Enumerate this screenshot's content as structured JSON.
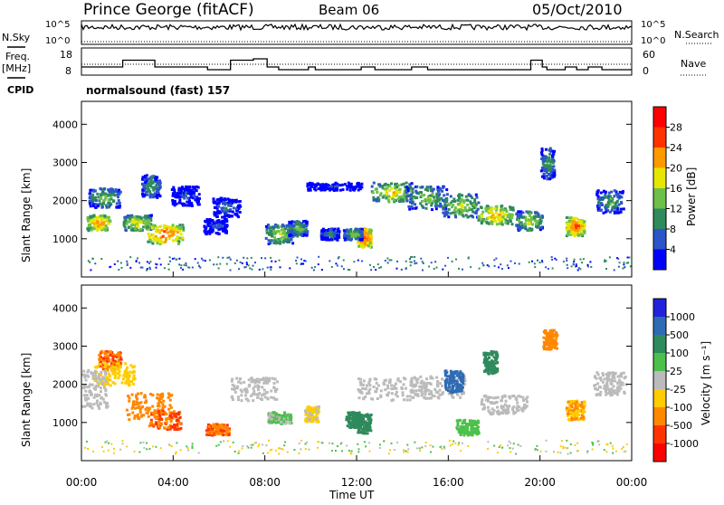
{
  "header": {
    "station": "Prince George (fitACF)",
    "beam": "Beam 06",
    "date": "05/Oct/2010"
  },
  "top_panels": {
    "left_labels": [
      "N.Sky",
      "Freq.",
      "[MHz]",
      "CPID"
    ],
    "right_labels": [
      "N.Search",
      "Nave"
    ],
    "nsky_ticks": [
      "10^5",
      "10^0"
    ],
    "nsearch_ticks": [
      "10^5",
      "10^0"
    ],
    "freq_ticks": [
      "18",
      "8"
    ],
    "nave_ticks": [
      "60",
      "0"
    ],
    "cpid_text": "normalsound (fast) 157"
  },
  "axes": {
    "ylabel": "Slant Range [km]",
    "xlabel": "Time UT",
    "xticks": [
      "00:00",
      "04:00",
      "08:00",
      "12:00",
      "16:00",
      "20:00",
      "00:00"
    ],
    "yticks": [
      "1000",
      "2000",
      "3000",
      "4000"
    ],
    "ylim": [
      0,
      4600
    ]
  },
  "power_bar": {
    "label": "Power [dB]",
    "ticks": [
      "4",
      "8",
      "12",
      "16",
      "20",
      "24",
      "28"
    ],
    "colors": [
      "#0000ff",
      "#2c56c8",
      "#2f8a5c",
      "#6fc04a",
      "#e6e600",
      "#ff9900",
      "#ff3300",
      "#ff0000"
    ]
  },
  "velocity_bar": {
    "label": "Velocity [m s⁻¹]",
    "ticks": [
      "1000",
      "500",
      "100",
      "25",
      "-25",
      "-100",
      "-500",
      "-1000"
    ],
    "colors": [
      "#2222dd",
      "#2f6bb4",
      "#2f8a5c",
      "#4cc04a",
      "#bbbbbb",
      "#ffcc00",
      "#ff8800",
      "#ff3300",
      "#ff0000"
    ]
  },
  "chart_data": {
    "type": "heatmap",
    "x_range_hours": [
      0,
      24
    ],
    "freq_profile_mhz": [
      [
        0,
        11
      ],
      [
        1.8,
        11
      ],
      [
        1.8,
        13.5
      ],
      [
        3.2,
        13.5
      ],
      [
        3.2,
        11
      ],
      [
        5.5,
        11
      ],
      [
        5.5,
        10
      ],
      [
        6.5,
        10
      ],
      [
        6.5,
        13.5
      ],
      [
        7.5,
        13.5
      ],
      [
        7.5,
        14
      ],
      [
        8.1,
        14
      ],
      [
        8.1,
        11
      ],
      [
        8.6,
        11
      ],
      [
        8.6,
        10
      ],
      [
        9.9,
        10
      ],
      [
        9.9,
        11
      ],
      [
        10.2,
        11
      ],
      [
        10.2,
        10
      ],
      [
        12.2,
        10
      ],
      [
        12.2,
        11
      ],
      [
        12.8,
        11
      ],
      [
        12.8,
        10
      ],
      [
        14.4,
        10
      ],
      [
        14.4,
        11
      ],
      [
        15.1,
        11
      ],
      [
        15.1,
        10
      ],
      [
        19.6,
        10
      ],
      [
        19.6,
        13.5
      ],
      [
        20.1,
        13.5
      ],
      [
        20.1,
        11
      ],
      [
        20.3,
        11
      ],
      [
        20.3,
        10
      ],
      [
        21.1,
        10
      ],
      [
        21.1,
        11
      ],
      [
        21.6,
        11
      ],
      [
        21.6,
        10
      ],
      [
        22.1,
        10
      ],
      [
        22.1,
        11
      ],
      [
        22.7,
        11
      ],
      [
        22.7,
        10
      ],
      [
        24,
        10
      ]
    ],
    "freq_dotted_mhz": 12,
    "power_blobs": [
      {
        "t": 0.7,
        "r": 1450,
        "dt": 0.5,
        "dr": 200,
        "db": 24
      },
      {
        "t": 1.0,
        "r": 2100,
        "dt": 0.7,
        "dr": 250,
        "db": 16
      },
      {
        "t": 2.4,
        "r": 1450,
        "dt": 0.6,
        "dr": 200,
        "db": 20
      },
      {
        "t": 3.6,
        "r": 1150,
        "dt": 0.8,
        "dr": 250,
        "db": 26
      },
      {
        "t": 3.0,
        "r": 2400,
        "dt": 0.4,
        "dr": 300,
        "db": 14
      },
      {
        "t": 8.6,
        "r": 1150,
        "dt": 0.6,
        "dr": 250,
        "db": 18
      },
      {
        "t": 9.4,
        "r": 1300,
        "dt": 0.4,
        "dr": 200,
        "db": 16
      },
      {
        "t": 10.8,
        "r": 1150,
        "dt": 0.4,
        "dr": 150,
        "db": 12
      },
      {
        "t": 12.3,
        "r": 1050,
        "dt": 0.3,
        "dr": 250,
        "db": 28
      },
      {
        "t": 11.8,
        "r": 1150,
        "dt": 0.4,
        "dr": 150,
        "db": 16
      },
      {
        "t": 13.5,
        "r": 2250,
        "dt": 0.9,
        "dr": 250,
        "db": 20
      },
      {
        "t": 15.0,
        "r": 2100,
        "dt": 0.9,
        "dr": 300,
        "db": 16
      },
      {
        "t": 16.5,
        "r": 1900,
        "dt": 0.8,
        "dr": 300,
        "db": 18
      },
      {
        "t": 18.0,
        "r": 1650,
        "dt": 0.8,
        "dr": 250,
        "db": 22
      },
      {
        "t": 19.5,
        "r": 1500,
        "dt": 0.6,
        "dr": 250,
        "db": 18
      },
      {
        "t": 20.3,
        "r": 3000,
        "dt": 0.3,
        "dr": 400,
        "db": 14
      },
      {
        "t": 21.5,
        "r": 1350,
        "dt": 0.4,
        "dr": 250,
        "db": 26
      },
      {
        "t": 23.0,
        "r": 2000,
        "dt": 0.6,
        "dr": 300,
        "db": 14
      },
      {
        "t": 6.3,
        "r": 1850,
        "dt": 0.6,
        "dr": 250,
        "db": 10
      },
      {
        "t": 4.5,
        "r": 2150,
        "dt": 0.6,
        "dr": 250,
        "db": 8
      },
      {
        "t": 5.8,
        "r": 1350,
        "dt": 0.5,
        "dr": 200,
        "db": 8
      },
      {
        "t": 11.0,
        "r": 2400,
        "dt": 1.2,
        "dr": 100,
        "db": 6
      }
    ],
    "velocity_blobs": [
      {
        "t": 2.9,
        "r": 1450,
        "dt": 1.0,
        "dr": 350,
        "v": -300
      },
      {
        "t": 3.6,
        "r": 1100,
        "dt": 0.7,
        "dr": 250,
        "v": -500
      },
      {
        "t": 1.2,
        "r": 2650,
        "dt": 0.5,
        "dr": 250,
        "v": -500
      },
      {
        "t": 1.4,
        "r": 2300,
        "dt": 0.9,
        "dr": 300,
        "v": -70
      },
      {
        "t": 0.5,
        "r": 1900,
        "dt": 0.6,
        "dr": 500,
        "v": 0
      },
      {
        "t": 5.9,
        "r": 850,
        "dt": 0.5,
        "dr": 150,
        "v": -500
      },
      {
        "t": 8.6,
        "r": 1150,
        "dt": 0.5,
        "dr": 150,
        "v": 30
      },
      {
        "t": 10.0,
        "r": 1250,
        "dt": 0.3,
        "dr": 200,
        "v": -30
      },
      {
        "t": 11.8,
        "r": 1100,
        "dt": 0.3,
        "dr": 200,
        "v": 120
      },
      {
        "t": 12.3,
        "r": 1000,
        "dt": 0.3,
        "dr": 250,
        "v": 400
      },
      {
        "t": 13.5,
        "r": 1900,
        "dt": 1.5,
        "dr": 300,
        "v": 0
      },
      {
        "t": 15.5,
        "r": 1950,
        "dt": 1.2,
        "dr": 300,
        "v": 0
      },
      {
        "t": 16.2,
        "r": 2100,
        "dt": 0.4,
        "dr": 300,
        "v": 700
      },
      {
        "t": 17.8,
        "r": 2600,
        "dt": 0.3,
        "dr": 300,
        "v": 300
      },
      {
        "t": 18.4,
        "r": 1500,
        "dt": 1.0,
        "dr": 250,
        "v": 0
      },
      {
        "t": 20.4,
        "r": 3200,
        "dt": 0.3,
        "dr": 250,
        "v": -400
      },
      {
        "t": 21.5,
        "r": 1350,
        "dt": 0.4,
        "dr": 250,
        "v": -100
      },
      {
        "t": 23.0,
        "r": 2050,
        "dt": 0.7,
        "dr": 300,
        "v": 0
      },
      {
        "t": 16.8,
        "r": 900,
        "dt": 0.5,
        "dr": 200,
        "v": 80
      },
      {
        "t": 7.5,
        "r": 1900,
        "dt": 1.0,
        "dr": 300,
        "v": 0
      }
    ]
  }
}
